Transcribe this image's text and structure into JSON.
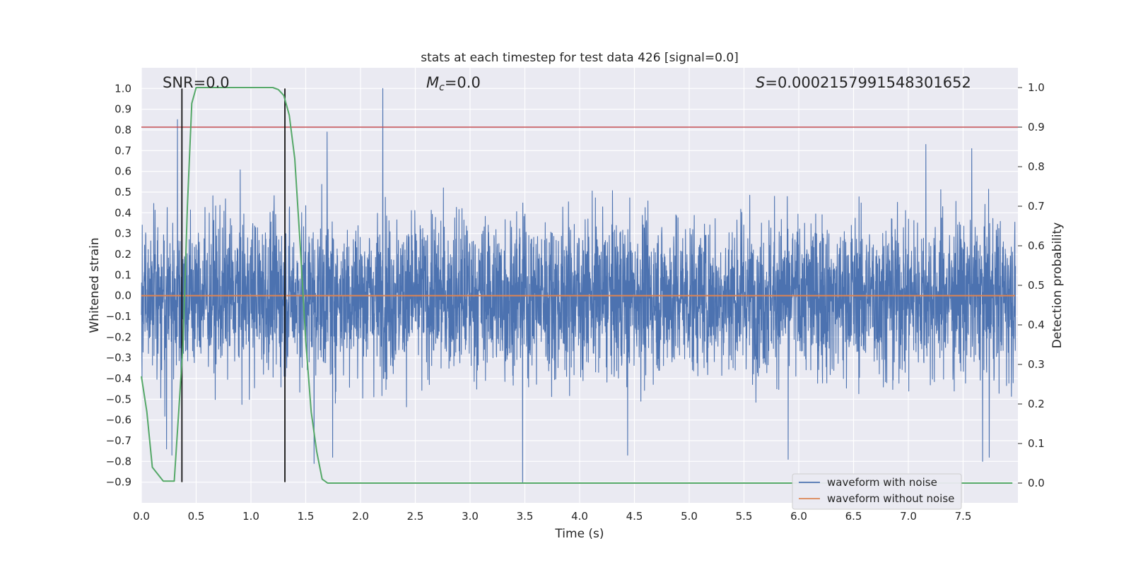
{
  "chart_data": {
    "type": "line",
    "title": "stats at each timestep for test data 426 [signal=0.0]",
    "xlabel": "Time (s)",
    "ylabel": "Whitened strain",
    "y2label": "Detection probability",
    "xlim": [
      0.0,
      8.0
    ],
    "ylim": [
      -1.0,
      1.1
    ],
    "y2lim": [
      -0.05,
      1.05
    ],
    "x_ticks": [
      0.0,
      0.5,
      1.0,
      1.5,
      2.0,
      2.5,
      3.0,
      3.5,
      4.0,
      4.5,
      5.0,
      5.5,
      6.0,
      6.5,
      7.0,
      7.5
    ],
    "x_tick_labels": [
      "0.0",
      "0.5",
      "1.0",
      "1.5",
      "2.0",
      "2.5",
      "3.0",
      "3.5",
      "4.0",
      "4.5",
      "5.0",
      "5.5",
      "6.0",
      "6.5",
      "7.0",
      "7.5"
    ],
    "y_ticks": [
      1.0,
      0.9,
      0.8,
      0.7,
      0.6,
      0.5,
      0.4,
      0.3,
      0.2,
      0.1,
      0.0,
      -0.1,
      -0.2,
      -0.3,
      -0.4,
      -0.5,
      -0.6,
      -0.7,
      -0.8,
      -0.9
    ],
    "y_tick_labels": [
      "1.0",
      "0.9",
      "0.8",
      "0.7",
      "0.6",
      "0.5",
      "0.4",
      "0.3",
      "0.2",
      "0.1",
      "0.0",
      "−0.1",
      "−0.2",
      "−0.3",
      "−0.4",
      "−0.5",
      "−0.6",
      "−0.7",
      "−0.8",
      "−0.9"
    ],
    "y2_ticks": [
      1.0,
      0.9,
      0.8,
      0.7,
      0.6,
      0.5,
      0.4,
      0.3,
      0.2,
      0.1,
      0.0
    ],
    "y2_tick_labels": [
      "1.0",
      "0.9",
      "0.8",
      "0.7",
      "0.6",
      "0.5",
      "0.4",
      "0.3",
      "0.2",
      "0.1",
      "0.0"
    ],
    "grid": true,
    "legend_position": "bottom-right",
    "annotations": {
      "snr": "SNR=0.0",
      "mc_symbol": "M",
      "mc_sub": "c",
      "mc_value": "=0.0",
      "s_symbol": "S",
      "s_value": "=0.0002157991548301652"
    },
    "series": [
      {
        "name": "waveform with noise",
        "color": "#4c72b0",
        "axis": "left",
        "kind": "noise",
        "typical_amplitude": 0.45,
        "peaks": [
          {
            "x": 0.33,
            "y": 0.85
          },
          {
            "x": 0.37,
            "y": 0.78
          },
          {
            "x": 0.23,
            "y": -0.74
          },
          {
            "x": 0.28,
            "y": -0.77
          },
          {
            "x": 1.7,
            "y": 0.79
          },
          {
            "x": 2.21,
            "y": 1.0
          },
          {
            "x": 1.75,
            "y": -0.78
          },
          {
            "x": 1.58,
            "y": -0.81
          },
          {
            "x": 3.49,
            "y": -0.9
          },
          {
            "x": 4.45,
            "y": -0.77
          },
          {
            "x": 5.92,
            "y": -0.79
          },
          {
            "x": 7.18,
            "y": 0.73
          },
          {
            "x": 7.6,
            "y": 0.71
          },
          {
            "x": 7.7,
            "y": -0.8
          },
          {
            "x": 7.76,
            "y": -0.78
          }
        ]
      },
      {
        "name": "waveform without noise",
        "color": "#dd8452",
        "axis": "left",
        "x": [
          0.0,
          8.0
        ],
        "y": [
          0.0,
          0.0
        ]
      },
      {
        "color": "#55a868",
        "axis": "right",
        "x": [
          0.0,
          0.05,
          0.1,
          0.2,
          0.3,
          0.38,
          0.42,
          0.46,
          0.5,
          0.6,
          0.8,
          1.0,
          1.1,
          1.2,
          1.25,
          1.3,
          1.35,
          1.4,
          1.45,
          1.5,
          1.55,
          1.6,
          1.65,
          1.7,
          1.8,
          2.0,
          3.0,
          4.0,
          5.0,
          6.0,
          7.0,
          7.95
        ],
        "y": [
          0.27,
          0.18,
          0.04,
          0.005,
          0.005,
          0.35,
          0.7,
          0.96,
          1.0,
          1.0,
          1.0,
          1.0,
          1.0,
          1.0,
          0.995,
          0.98,
          0.93,
          0.82,
          0.6,
          0.36,
          0.18,
          0.08,
          0.01,
          0.0,
          0.0,
          0.0,
          0.0,
          0.0,
          0.0,
          0.0,
          0.0,
          0.0
        ]
      }
    ],
    "threshold_line": {
      "axis": "right",
      "value": 0.9,
      "color": "#c44e52"
    },
    "vertical_markers": [
      {
        "x": 0.37,
        "color": "#111111"
      },
      {
        "x": 1.31,
        "color": "#111111"
      }
    ],
    "colors": {
      "plot_background": "#eaeaf2",
      "grid": "#ffffff",
      "text": "#262626"
    }
  }
}
